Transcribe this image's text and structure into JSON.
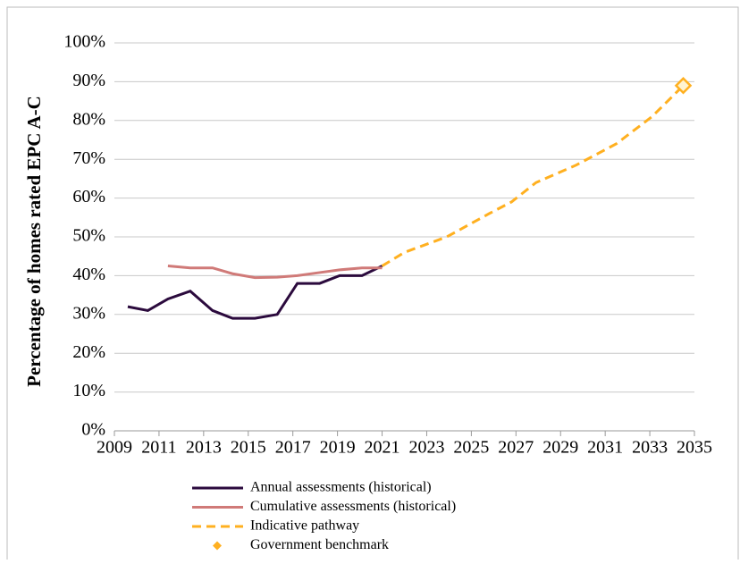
{
  "chart_data": {
    "type": "line",
    "y_label": "Percentage of homes rated EPC A-C",
    "xlim": [
      2009,
      2035
    ],
    "xticks": [
      2009,
      2011,
      2013,
      2015,
      2017,
      2019,
      2021,
      2023,
      2025,
      2027,
      2029,
      2031,
      2033,
      2035
    ],
    "ylim": [
      0,
      100
    ],
    "yticks": [
      {
        "value": 0,
        "label": "0%"
      },
      {
        "value": 10,
        "label": "10%"
      },
      {
        "value": 20,
        "label": "20%"
      },
      {
        "value": 30,
        "label": "30%"
      },
      {
        "value": 40,
        "label": "40%"
      },
      {
        "value": 50,
        "label": "50%"
      },
      {
        "value": 60,
        "label": "60%"
      },
      {
        "value": 70,
        "label": "70%"
      },
      {
        "value": 80,
        "label": "80%"
      },
      {
        "value": 90,
        "label": "90%"
      },
      {
        "value": 100,
        "label": "100%"
      }
    ],
    "grid": true,
    "series": [
      {
        "name": "Annual assessments (historical)",
        "color": "#2b0a3d",
        "x": [
          2009.6,
          2010.5,
          2011.4,
          2012.4,
          2013.4,
          2014.3,
          2015.3,
          2016.3,
          2017.2,
          2018.2,
          2019.1,
          2020.1,
          2021.0
        ],
        "values": [
          32,
          31,
          34,
          36,
          31,
          29,
          29,
          30,
          38,
          38,
          40,
          40,
          42.5
        ]
      },
      {
        "name": "Cumulative assessments (historical)",
        "color": "#d07a78",
        "x": [
          2011.4,
          2012.4,
          2013.4,
          2014.3,
          2015.3,
          2016.3,
          2017.2,
          2018.2,
          2019.1,
          2020.1,
          2021.0
        ],
        "values": [
          42.5,
          42,
          42,
          40.5,
          39.5,
          39.6,
          40,
          40.8,
          41.5,
          42,
          42
        ]
      },
      {
        "name": "Indicative pathway",
        "color": "#ffb020",
        "dashed": true,
        "x": [
          2021.0,
          2022.0,
          2023.9,
          2025.8,
          2026.8,
          2027.9,
          2029.7,
          2031.5,
          2033.1,
          2034.5
        ],
        "values": [
          42.5,
          46,
          50,
          56,
          59,
          64,
          68.5,
          74,
          81,
          89
        ]
      },
      {
        "name": "Government benchmark",
        "color": "#ffb020",
        "marker": "diamond",
        "x": [
          2034.5
        ],
        "values": [
          89
        ]
      }
    ]
  }
}
